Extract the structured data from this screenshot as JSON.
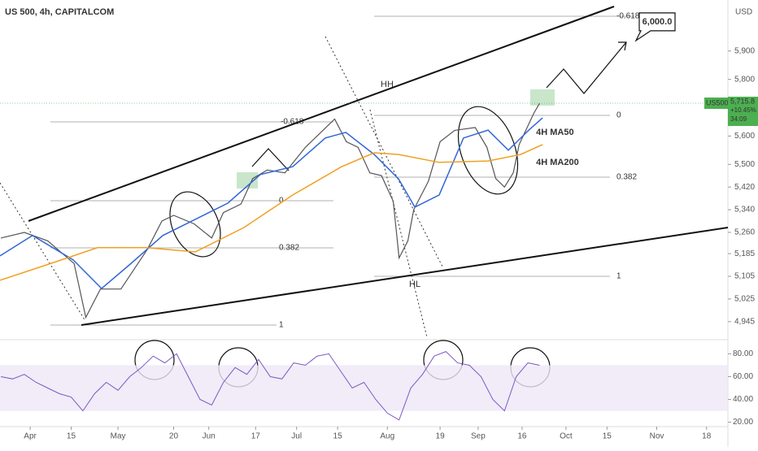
{
  "chart_data": {
    "type": "line",
    "title": "US 500, 4h, CAPITALCOM",
    "currency": "USD",
    "xlim": [
      -10.3,
      238.3
    ],
    "xticks": [
      {
        "value": 0,
        "label": "Apr"
      },
      {
        "value": 14,
        "label": "15"
      },
      {
        "value": 30,
        "label": "May"
      },
      {
        "value": 49,
        "label": "20"
      },
      {
        "value": 61,
        "label": "Jun"
      },
      {
        "value": 77,
        "label": "17"
      },
      {
        "value": 91,
        "label": "Jul"
      },
      {
        "value": 105,
        "label": "15"
      },
      {
        "value": 122,
        "label": "Aug"
      },
      {
        "value": 140,
        "label": "19"
      },
      {
        "value": 153,
        "label": "Sep"
      },
      {
        "value": 168,
        "label": "16"
      },
      {
        "value": 183,
        "label": "Oct"
      },
      {
        "value": 197,
        "label": "15"
      },
      {
        "value": 214,
        "label": "Nov"
      },
      {
        "value": 231,
        "label": "18"
      }
    ],
    "ylim": [
      4890,
      6080
    ],
    "yticks": [
      {
        "value": 4945,
        "label": "4,945"
      },
      {
        "value": 5025,
        "label": "5,025"
      },
      {
        "value": 5105,
        "label": "5,105"
      },
      {
        "value": 5185,
        "label": "5,185"
      },
      {
        "value": 5260,
        "label": "5,260"
      },
      {
        "value": 5340,
        "label": "5,340"
      },
      {
        "value": 5420,
        "label": "5,420"
      },
      {
        "value": 5500,
        "label": "5,500"
      },
      {
        "value": 5600,
        "label": "5,600"
      },
      {
        "value": 5800,
        "label": "5,800"
      },
      {
        "value": 5900,
        "label": "5,900"
      }
    ],
    "series": [
      {
        "name": "US500",
        "color": "#555555",
        "x": [
          -10,
          -2,
          6,
          15,
          19,
          24,
          31,
          40,
          45,
          49,
          56,
          62,
          66,
          72,
          76,
          81,
          87,
          94,
          101,
          104,
          108,
          112,
          116,
          120,
          124,
          126,
          129,
          131,
          136,
          140,
          145,
          152,
          156,
          159,
          162,
          165,
          167,
          172,
          174
        ],
        "values": [
          5240,
          5260,
          5230,
          5150,
          4960,
          5060,
          5060,
          5200,
          5300,
          5320,
          5290,
          5240,
          5330,
          5360,
          5450,
          5480,
          5470,
          5560,
          5630,
          5660,
          5580,
          5560,
          5470,
          5460,
          5370,
          5170,
          5230,
          5340,
          5440,
          5580,
          5620,
          5630,
          5560,
          5450,
          5420,
          5470,
          5570,
          5680,
          5715.8
        ]
      },
      {
        "name": "4H MA50",
        "color": "#3366d6",
        "x": [
          -10.3,
          0.8,
          14.7,
          24.4,
          34.2,
          45.3,
          56.4,
          67.5,
          78.6,
          89.7,
          100.8,
          107.8,
          117.5,
          125.8,
          131.4,
          139.7,
          148,
          156.4,
          163.3,
          170.3,
          175
        ],
        "values": [
          5177,
          5249,
          5163,
          5062,
          5148,
          5249,
          5306,
          5363,
          5464,
          5492,
          5593,
          5613,
          5535,
          5449,
          5349,
          5392,
          5593,
          5621,
          5550,
          5621,
          5664
        ]
      },
      {
        "name": "4H MA200",
        "color": "#f0a020",
        "x": [
          -10.3,
          6.4,
          23,
          39.7,
          56.4,
          73,
          89.7,
          106.4,
          117.5,
          125.8,
          139.7,
          156.4,
          167.5,
          175
        ],
        "values": [
          5091,
          5148,
          5206,
          5206,
          5191,
          5277,
          5392,
          5492,
          5541,
          5535,
          5507,
          5512,
          5535,
          5570
        ]
      }
    ],
    "price_tag": {
      "symbol": "US500",
      "value": 5715.8,
      "label": "5,715.8",
      "change": "+10.45%",
      "countdown": "34:09"
    },
    "target": {
      "value": 6000,
      "label": "6,000.0"
    },
    "annotations": {
      "hh": "HH",
      "hl": "HL"
    },
    "fib_left": [
      "-0.618",
      "0",
      "0.382",
      "1"
    ],
    "fib_right": [
      "-0.618",
      "0",
      "0.382",
      "1"
    ],
    "rsi": {
      "color": "#7e57c2",
      "ylim": [
        14,
        91
      ],
      "yticks": [
        {
          "value": 20,
          "label": "20.00"
        },
        {
          "value": 40,
          "label": "40.00"
        },
        {
          "value": 60,
          "label": "60.00"
        },
        {
          "value": 80,
          "label": "80.00"
        }
      ],
      "band": [
        30,
        70
      ],
      "x": [
        -10,
        -6,
        -2,
        2,
        6,
        10,
        14,
        18,
        22,
        26,
        30,
        34,
        38,
        42,
        46,
        50,
        54,
        58,
        62,
        66,
        70,
        74,
        78,
        82,
        86,
        90,
        94,
        98,
        102,
        106,
        110,
        114,
        118,
        122,
        126,
        130,
        134,
        138,
        142,
        146,
        150,
        154,
        158,
        162,
        166,
        170,
        174
      ],
      "values": [
        60,
        58,
        62,
        55,
        50,
        45,
        42,
        30,
        45,
        55,
        48,
        60,
        68,
        78,
        72,
        80,
        60,
        40,
        35,
        55,
        68,
        62,
        75,
        60,
        58,
        72,
        70,
        78,
        80,
        65,
        50,
        55,
        40,
        28,
        22,
        50,
        62,
        78,
        82,
        72,
        70,
        60,
        40,
        30,
        60,
        72,
        70
      ]
    }
  }
}
